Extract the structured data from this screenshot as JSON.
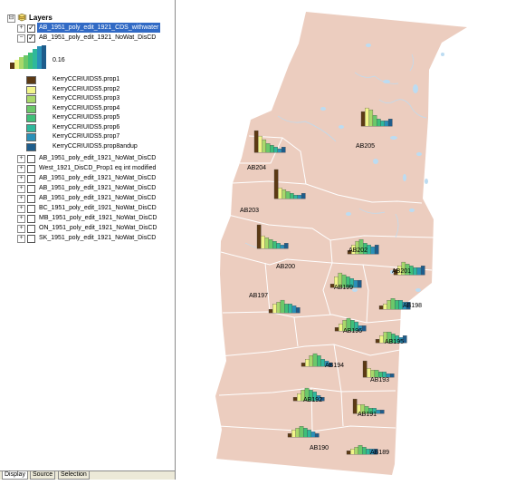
{
  "toc": {
    "root": {
      "label": "Layers",
      "expand": "⊟"
    },
    "layers": [
      {
        "label": "AB_1951_poly_edit_1921_CDS_withwater",
        "checked": true,
        "expand": "+",
        "selected": true
      },
      {
        "label": "AB_1951_poly_edit_1921_NoWat_DisCD",
        "checked": true,
        "expand": "−",
        "selected": false
      }
    ],
    "legend": {
      "max_value": "0.16",
      "items": [
        {
          "label": "KerryCCRIUIDS5.prop1",
          "color": "#5c3a14"
        },
        {
          "label": "KerryCCRIUIDS5.prop2",
          "color": "#f2f58a"
        },
        {
          "label": "KerryCCRIUIDS5.prop3",
          "color": "#a9d86b"
        },
        {
          "label": "KerryCCRIUIDS5.prop4",
          "color": "#6cc86a"
        },
        {
          "label": "KerryCCRIUIDS5.prop5",
          "color": "#3fbf79"
        },
        {
          "label": "KerryCCRIUIDS5.prop6",
          "color": "#2fb89c"
        },
        {
          "label": "KerryCCRIUIDS5.prop7",
          "color": "#2a90b8"
        },
        {
          "label": "KerryCCRIUIDS5.prop8andup",
          "color": "#1e5d8c"
        }
      ]
    },
    "other_layers": [
      {
        "label": "AB_1951_poly_edit_1921_NoWat_DisCD",
        "checked": false
      },
      {
        "label": "West_1921_DisCD_Prop1 eq int modified",
        "checked": false
      },
      {
        "label": "AB_1951_poly_edit_1921_NoWat_DisCD",
        "checked": false
      },
      {
        "label": "AB_1951_poly_edit_1921_NoWat_DisCD",
        "checked": false
      },
      {
        "label": "AB_1951_poly_edit_1921_NoWat_DisCD",
        "checked": false
      },
      {
        "label": "BC_1951_poly_edit_1921_NoWat_DisCD",
        "checked": false
      },
      {
        "label": "MB_1951_poly_edit_1921_NoWat_DisCD",
        "checked": false
      },
      {
        "label": "ON_1951_poly_edit_1921_NoWat_DisCD",
        "checked": false
      },
      {
        "label": "SK_1951_poly_edit_1921_NoWat_DisCD",
        "checked": false
      }
    ],
    "tabs": [
      "Display",
      "Source",
      "Selection"
    ]
  },
  "map": {
    "land_color": "#eccdbf",
    "water_color": "#bcdcf2",
    "border_color": "#ffffff",
    "bar_colors": [
      "#5c3a14",
      "#f2f58a",
      "#a9d86b",
      "#6cc86a",
      "#3fbf79",
      "#2fb89c",
      "#2a90b8",
      "#1e5d8c"
    ],
    "divisions": [
      {
        "label": "AB205",
        "values": [
          0.08,
          0.1,
          0.09,
          0.06,
          0.04,
          0.03,
          0.03,
          0.04
        ]
      },
      {
        "label": "AB204",
        "values": [
          0.12,
          0.09,
          0.07,
          0.05,
          0.04,
          0.03,
          0.02,
          0.03
        ]
      },
      {
        "label": "AB203",
        "values": [
          0.16,
          0.06,
          0.05,
          0.04,
          0.03,
          0.02,
          0.02,
          0.03
        ]
      },
      {
        "label": "AB200",
        "values": [
          0.13,
          0.07,
          0.06,
          0.05,
          0.04,
          0.03,
          0.02,
          0.03
        ]
      },
      {
        "label": "AB202",
        "values": [
          0.02,
          0.05,
          0.07,
          0.08,
          0.06,
          0.05,
          0.04,
          0.05
        ]
      },
      {
        "label": "AB201",
        "values": [
          0.03,
          0.05,
          0.07,
          0.06,
          0.05,
          0.04,
          0.04,
          0.05
        ]
      },
      {
        "label": "AB199",
        "values": [
          0.02,
          0.06,
          0.08,
          0.07,
          0.06,
          0.05,
          0.04,
          0.04
        ]
      },
      {
        "label": "AB198",
        "values": [
          0.02,
          0.03,
          0.05,
          0.06,
          0.05,
          0.05,
          0.04,
          0.04
        ]
      },
      {
        "label": "AB197",
        "values": [
          0.02,
          0.05,
          0.06,
          0.07,
          0.05,
          0.05,
          0.04,
          0.03
        ]
      },
      {
        "label": "AB196",
        "values": [
          0.02,
          0.04,
          0.06,
          0.07,
          0.06,
          0.05,
          0.03,
          0.03
        ]
      },
      {
        "label": "AB195",
        "values": [
          0.02,
          0.04,
          0.06,
          0.06,
          0.05,
          0.04,
          0.03,
          0.04
        ]
      },
      {
        "label": "AB194",
        "values": [
          0.02,
          0.04,
          0.06,
          0.07,
          0.06,
          0.04,
          0.03,
          0.02
        ]
      },
      {
        "label": "AB193",
        "values": [
          0.09,
          0.05,
          0.04,
          0.04,
          0.03,
          0.03,
          0.02,
          0.02
        ]
      },
      {
        "label": "AB192",
        "values": [
          0.02,
          0.04,
          0.06,
          0.07,
          0.06,
          0.05,
          0.03,
          0.02
        ]
      },
      {
        "label": "AB191",
        "values": [
          0.08,
          0.05,
          0.05,
          0.04,
          0.03,
          0.03,
          0.02,
          0.02
        ]
      },
      {
        "label": "AB190",
        "values": [
          0.02,
          0.04,
          0.05,
          0.06,
          0.05,
          0.04,
          0.03,
          0.02
        ]
      },
      {
        "label": "AB189",
        "values": [
          0.02,
          0.03,
          0.04,
          0.05,
          0.04,
          0.03,
          0.03,
          0.03
        ]
      }
    ]
  }
}
